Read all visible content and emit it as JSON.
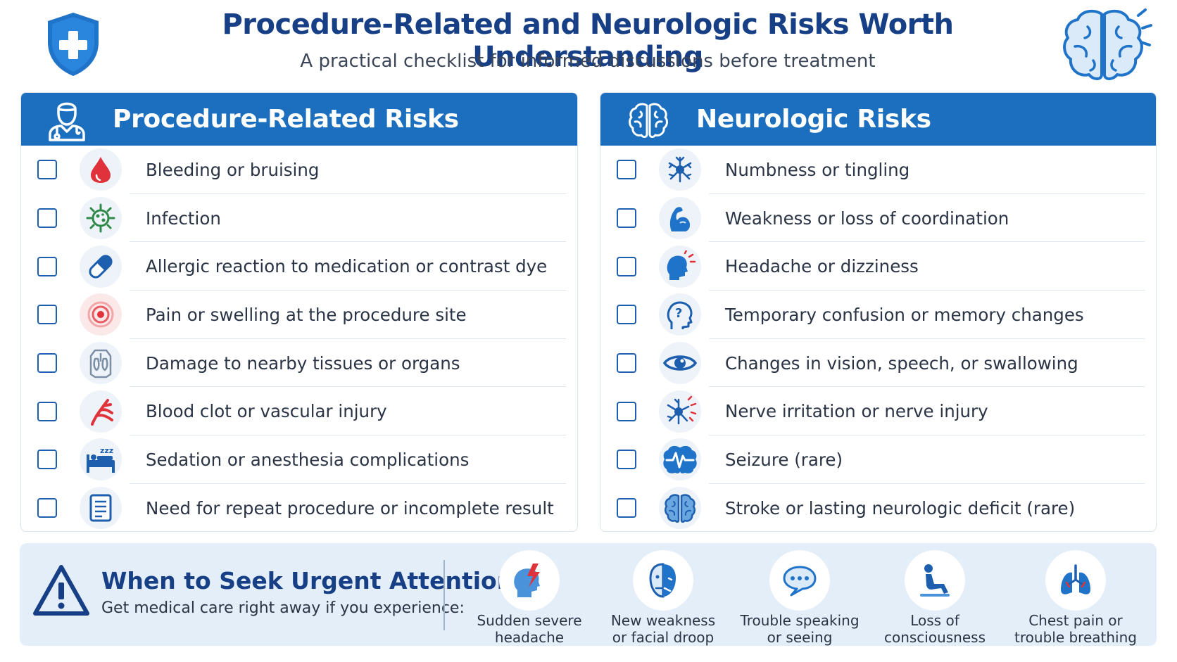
{
  "header": {
    "title": "Procedure-Related and Neurologic Risks Worth Understanding",
    "subtitle": "A practical checklist for informed discussions before treatment"
  },
  "colors": {
    "primary_blue": "#1c6fbf",
    "title_navy": "#173f86",
    "urgent_bg": "#e3eef9",
    "accent_red": "#e0323a"
  },
  "procedure": {
    "heading": "Procedure-Related Risks",
    "heading_icon": "doctor-icon",
    "items": [
      {
        "label": "Bleeding or bruising",
        "icon": "blood-drop-icon"
      },
      {
        "label": "Infection",
        "icon": "germ-icon"
      },
      {
        "label": "Allergic reaction to medication or contrast dye",
        "icon": "pill-icon"
      },
      {
        "label": "Pain or swelling at the procedure site",
        "icon": "target-icon"
      },
      {
        "label": "Damage to nearby tissues or organs",
        "icon": "organs-icon"
      },
      {
        "label": "Blood clot or vascular injury",
        "icon": "blood-vessel-icon"
      },
      {
        "label": "Sedation or anesthesia complications",
        "icon": "sleeping-bed-icon"
      },
      {
        "label": "Need for repeat procedure or incomplete result",
        "icon": "document-icon"
      }
    ]
  },
  "neurologic": {
    "heading": "Neurologic Risks",
    "heading_icon": "brain-icon",
    "items": [
      {
        "label": "Numbness or tingling",
        "icon": "neuron-icon"
      },
      {
        "label": "Weakness or loss of coordination",
        "icon": "arm-muscle-icon"
      },
      {
        "label": "Headache or dizziness",
        "icon": "head-ache-icon"
      },
      {
        "label": "Temporary confusion or memory changes",
        "icon": "head-question-icon"
      },
      {
        "label": "Changes in vision, speech, or swallowing",
        "icon": "eye-icon"
      },
      {
        "label": "Nerve irritation or nerve injury",
        "icon": "nerve-spark-icon"
      },
      {
        "label": "Seizure (rare)",
        "icon": "brain-wave-icon"
      },
      {
        "label": "Stroke or lasting neurologic deficit (rare)",
        "icon": "brain-icon"
      }
    ]
  },
  "urgent": {
    "title": "When to Seek Urgent Attention",
    "subtitle": "Get medical care right away if you experience:",
    "symptoms": [
      {
        "line1": "Sudden severe",
        "line2": "headache",
        "icon": "head-lightning-icon"
      },
      {
        "line1": "New weakness",
        "line2": "or facial droop",
        "icon": "face-droop-icon"
      },
      {
        "line1": "Trouble speaking",
        "line2": "or seeing",
        "icon": "speech-bubble-icon"
      },
      {
        "line1": "Loss of",
        "line2": "consciousness",
        "icon": "fainting-person-icon"
      },
      {
        "line1": "Chest pain or",
        "line2": "trouble breathing",
        "icon": "lungs-icon"
      }
    ]
  }
}
